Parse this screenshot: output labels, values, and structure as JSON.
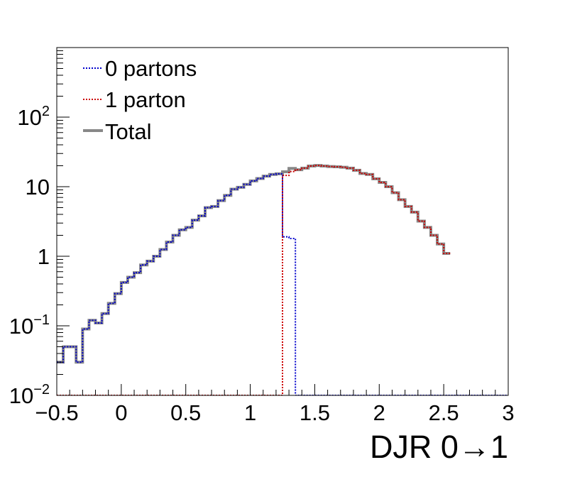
{
  "chart_data": {
    "type": "line",
    "title": "",
    "xlabel": "DJR 0→1",
    "ylabel": "",
    "xlim": [
      -0.5,
      3.0
    ],
    "ylim": [
      0.01,
      1000
    ],
    "yscale": "log",
    "grid": false,
    "legend_position": "top-left",
    "x_ticks": [
      "−0.5",
      "0",
      "0.5",
      "1",
      "1.5",
      "2",
      "2.5",
      "3"
    ],
    "x_tick_values": [
      -0.5,
      0,
      0.5,
      1,
      1.5,
      2,
      2.5,
      3
    ],
    "y_ticks": [
      {
        "value": 0.01,
        "base": "10",
        "exp": "−2"
      },
      {
        "value": 0.1,
        "base": "10",
        "exp": "−1"
      },
      {
        "value": 1,
        "base": "1",
        "exp": ""
      },
      {
        "value": 10,
        "base": "10",
        "exp": ""
      },
      {
        "value": 100,
        "base": "10",
        "exp": "2"
      }
    ],
    "bin_width": 0.05,
    "bin_start": -0.5,
    "series": [
      {
        "name": "0 partons",
        "color": "#0000cc",
        "style": "dotted",
        "values": [
          0.03,
          0.05,
          0.05,
          0.03,
          0.09,
          0.12,
          0.11,
          0.15,
          0.21,
          0.29,
          0.42,
          0.5,
          0.58,
          0.75,
          0.85,
          1.0,
          1.25,
          1.6,
          2.0,
          2.4,
          2.6,
          3.3,
          3.8,
          5.0,
          5.2,
          6.3,
          7.5,
          9.2,
          9.8,
          10.8,
          12.1,
          13.1,
          14.2,
          15.0,
          15.3,
          1.9,
          1.8,
          0.01,
          0.01,
          0.01,
          0.01,
          0.01,
          0.01,
          0.01,
          0.01,
          0.01,
          0.01,
          0.01,
          0.01,
          0.01,
          0.01,
          0.01,
          0.01,
          0.01,
          0.01,
          0.01,
          0.01,
          0.01,
          0.01,
          0.01,
          0.01,
          0.01,
          0.01,
          0.01,
          0.01,
          0.01,
          0.01,
          0.01,
          0.01,
          0.01
        ]
      },
      {
        "name": "1 parton",
        "color": "#cc0000",
        "style": "dotted",
        "values": [
          0.01,
          0.01,
          0.01,
          0.01,
          0.01,
          0.01,
          0.01,
          0.01,
          0.01,
          0.01,
          0.01,
          0.01,
          0.01,
          0.01,
          0.01,
          0.01,
          0.01,
          0.01,
          0.01,
          0.01,
          0.01,
          0.01,
          0.01,
          0.01,
          0.01,
          0.01,
          0.01,
          0.01,
          0.01,
          0.01,
          0.01,
          0.01,
          0.01,
          0.01,
          0.01,
          14.5,
          16.5,
          17.5,
          18.5,
          19.8,
          20.2,
          19.8,
          19.5,
          19.3,
          19.0,
          18.5,
          17.2,
          15.5,
          15.0,
          13.0,
          11.5,
          10.0,
          8.2,
          6.5,
          5.2,
          4.3,
          3.2,
          2.6,
          2.0,
          1.5,
          1.1
        ]
      },
      {
        "name": "Total",
        "color": "#888888",
        "style": "solid",
        "values": [
          0.03,
          0.05,
          0.05,
          0.03,
          0.09,
          0.12,
          0.11,
          0.15,
          0.21,
          0.29,
          0.42,
          0.5,
          0.58,
          0.75,
          0.85,
          1.0,
          1.25,
          1.6,
          2.0,
          2.4,
          2.6,
          3.3,
          3.8,
          5.0,
          5.2,
          6.3,
          7.5,
          9.2,
          9.8,
          10.8,
          12.1,
          13.1,
          14.2,
          15.0,
          15.3,
          16.4,
          18.3,
          17.5,
          18.5,
          19.8,
          20.2,
          19.8,
          19.5,
          19.3,
          19.0,
          18.5,
          17.2,
          15.5,
          15.0,
          13.0,
          11.5,
          10.0,
          8.2,
          6.5,
          5.2,
          4.3,
          3.2,
          2.6,
          2.0,
          1.5,
          1.1
        ]
      }
    ]
  }
}
